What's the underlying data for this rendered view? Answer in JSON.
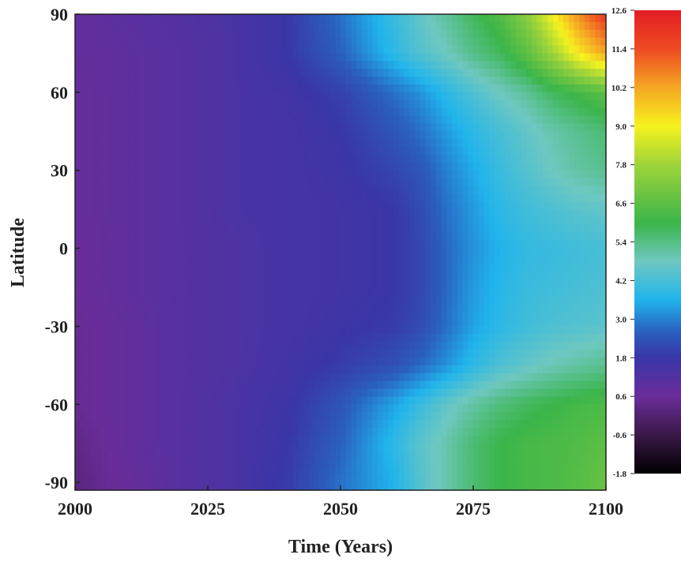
{
  "chart_data": {
    "type": "heatmap",
    "title": "",
    "xlabel": "Time (Years)",
    "ylabel": "Latitude",
    "xlim": [
      2000,
      2100
    ],
    "ylim": [
      -93,
      90
    ],
    "x_ticks": [
      2000,
      2025,
      2050,
      2075,
      2100
    ],
    "x_tick_labels": [
      "2000",
      "2025",
      "2050",
      "2075",
      "2100"
    ],
    "y_ticks": [
      90,
      60,
      30,
      0,
      -30,
      -60,
      -90
    ],
    "y_tick_labels": [
      "90",
      "60",
      "30",
      "0",
      "-30",
      "-60",
      "-90"
    ],
    "colorbar": {
      "range": [
        -1.8,
        12.6
      ],
      "ticks": [
        12.6,
        11.4,
        10.2,
        9.0,
        7.8,
        6.6,
        5.4,
        4.2,
        3.0,
        1.8,
        0.6,
        -0.6,
        -1.8
      ],
      "tick_labels": [
        "12.6",
        "11.4",
        "10.2",
        "9.0",
        "7.8",
        "6.6",
        "5.4",
        "4.2",
        "3.0",
        "1.8",
        "0.6",
        "-0.6",
        "-1.8"
      ],
      "colormap": [
        [
          -1.8,
          "#000000"
        ],
        [
          -0.6,
          "#3a1848"
        ],
        [
          0.6,
          "#6a2d9a"
        ],
        [
          1.8,
          "#3a36a8"
        ],
        [
          2.6,
          "#2a5fc0"
        ],
        [
          3.6,
          "#20b4ec"
        ],
        [
          4.8,
          "#6ec8c0"
        ],
        [
          6.0,
          "#3bb54a"
        ],
        [
          7.8,
          "#9fd43a"
        ],
        [
          9.0,
          "#f6f21e"
        ],
        [
          10.2,
          "#f5a623"
        ],
        [
          11.4,
          "#ee4a22"
        ],
        [
          12.6,
          "#e21d25"
        ]
      ]
    },
    "grid": false,
    "x": [
      2000,
      2010,
      2020,
      2030,
      2040,
      2050,
      2060,
      2065,
      2070,
      2075,
      2080,
      2085,
      2090,
      2095,
      2100
    ],
    "y": [
      90,
      75,
      60,
      45,
      30,
      15,
      0,
      -15,
      -30,
      -45,
      -60,
      -75,
      -90
    ],
    "z": [
      [
        0.8,
        1.0,
        1.2,
        1.4,
        1.8,
        2.8,
        4.0,
        4.6,
        5.2,
        5.8,
        6.4,
        7.4,
        9.0,
        10.6,
        11.8
      ],
      [
        0.8,
        0.9,
        1.1,
        1.4,
        1.8,
        2.6,
        3.8,
        4.4,
        4.8,
        5.4,
        5.8,
        6.6,
        7.8,
        9.2,
        10.2
      ],
      [
        0.7,
        0.9,
        1.1,
        1.4,
        1.6,
        2.0,
        2.8,
        3.2,
        3.8,
        4.3,
        4.8,
        5.2,
        5.8,
        6.2,
        6.6
      ],
      [
        0.7,
        0.9,
        1.1,
        1.4,
        1.5,
        1.8,
        2.4,
        2.8,
        3.3,
        3.8,
        4.2,
        4.6,
        5.0,
        5.3,
        5.6
      ],
      [
        0.7,
        0.9,
        1.1,
        1.4,
        1.5,
        1.7,
        2.1,
        2.4,
        3.0,
        3.5,
        4.0,
        4.4,
        4.8,
        5.1,
        5.3
      ],
      [
        0.7,
        0.9,
        1.1,
        1.4,
        1.5,
        1.6,
        1.8,
        2.2,
        2.8,
        3.3,
        3.8,
        4.1,
        4.3,
        4.5,
        4.6
      ],
      [
        0.6,
        0.9,
        1.1,
        1.3,
        1.5,
        1.6,
        1.8,
        2.1,
        2.7,
        3.2,
        3.6,
        3.9,
        4.0,
        4.1,
        4.2
      ],
      [
        0.6,
        0.9,
        1.1,
        1.3,
        1.5,
        1.6,
        1.8,
        2.1,
        2.7,
        3.3,
        3.7,
        4.0,
        4.1,
        4.2,
        4.3
      ],
      [
        0.5,
        0.8,
        1.1,
        1.3,
        1.5,
        1.7,
        1.9,
        2.2,
        2.8,
        3.4,
        3.8,
        4.1,
        4.3,
        4.4,
        4.5
      ],
      [
        0.5,
        0.8,
        1.1,
        1.3,
        1.6,
        1.9,
        2.3,
        2.7,
        3.2,
        3.8,
        4.3,
        4.6,
        4.9,
        5.1,
        5.3
      ],
      [
        0.5,
        0.8,
        1.1,
        1.4,
        1.7,
        2.4,
        3.4,
        4.0,
        4.6,
        5.1,
        5.5,
        5.8,
        6.0,
        6.2,
        6.3
      ],
      [
        0.3,
        0.8,
        1.1,
        1.4,
        1.8,
        2.6,
        3.8,
        4.5,
        5.0,
        5.6,
        6.0,
        6.2,
        6.3,
        6.4,
        6.6
      ],
      [
        0.2,
        0.7,
        1.1,
        1.4,
        1.9,
        2.8,
        3.6,
        4.4,
        5.0,
        5.6,
        6.0,
        6.2,
        6.3,
        6.5,
        6.8
      ]
    ]
  }
}
